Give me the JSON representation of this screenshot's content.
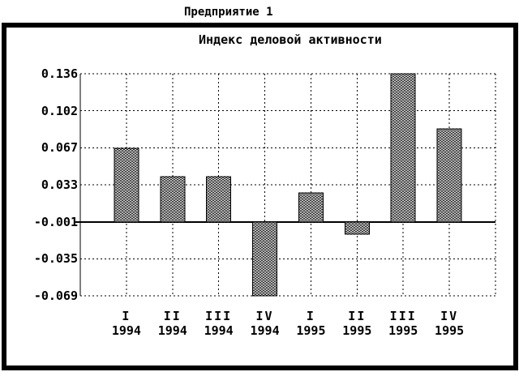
{
  "window": {
    "title": "Предприятие 1"
  },
  "chart_data": {
    "type": "bar",
    "title": "Индекс деловой активности",
    "categories": [
      "I 1994",
      "II 1994",
      "III 1994",
      "IV 1994",
      "I 1995",
      "II 1995",
      "III 1995",
      "IV 1995"
    ],
    "category_lines": [
      {
        "quarter": "I",
        "year": "1994"
      },
      {
        "quarter": "II",
        "year": "1994"
      },
      {
        "quarter": "III",
        "year": "1994"
      },
      {
        "quarter": "IV",
        "year": "1994"
      },
      {
        "quarter": "I",
        "year": "1995"
      },
      {
        "quarter": "II",
        "year": "1995"
      },
      {
        "quarter": "III",
        "year": "1995"
      },
      {
        "quarter": "IV",
        "year": "1995"
      }
    ],
    "values": [
      0.067,
      0.041,
      0.041,
      -0.069,
      0.026,
      -0.012,
      0.136,
      0.085
    ],
    "y_tick_labels": [
      "0.136",
      "0.102",
      "0.067",
      "0.033",
      "-0.001",
      "-0.035",
      "-0.069"
    ],
    "y_ticks": [
      0.136,
      0.102,
      0.067,
      0.033,
      -0.001,
      -0.035,
      -0.069
    ],
    "ylim": [
      -0.069,
      0.136
    ],
    "baseline": -0.001,
    "grid": true,
    "legend_position": "none",
    "bar_fill_pattern": "interleave-dither",
    "colors": {
      "fg": "#000000",
      "bg": "#ffffff"
    }
  }
}
